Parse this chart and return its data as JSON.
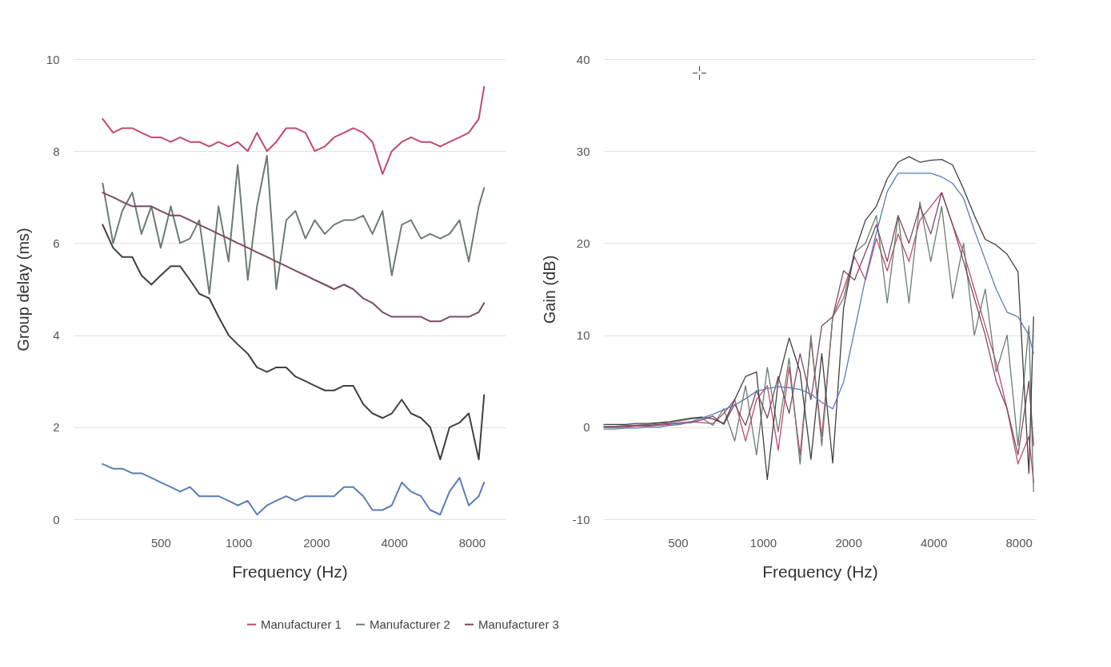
{
  "chart_data": [
    {
      "type": "line",
      "xlabel": "Frequency (Hz)",
      "ylabel": "Group delay (ms)",
      "log": "x",
      "grid": "y",
      "legend": "bottom",
      "xlim": [
        230,
        10800
      ],
      "ylim": [
        0,
        10
      ],
      "xticks": [
        500,
        1000,
        2000,
        4000,
        8000
      ],
      "yticks": [
        0,
        2,
        4,
        6,
        8,
        10
      ],
      "x": [
        298,
        327,
        355,
        388,
        421,
        460,
        500,
        547,
        594,
        649,
        705,
        771,
        837,
        915,
        993,
        1086,
        1179,
        1289,
        1400,
        1530,
        1662,
        1816,
        1973,
        2157,
        2343,
        2560,
        2780,
        3040,
        3300,
        3610,
        3920,
        4285,
        4650,
        5087,
        5520,
        6037,
        6557,
        7170,
        7785,
        8510,
        8927
      ],
      "series": [
        {
          "name": "Manufacturer 1",
          "color": "#c2496b",
          "values": [
            8.7,
            8.4,
            8.5,
            8.5,
            8.4,
            8.3,
            8.3,
            8.2,
            8.3,
            8.2,
            8.2,
            8.1,
            8.2,
            8.1,
            8.2,
            8.0,
            8.4,
            8.0,
            8.2,
            8.5,
            8.5,
            8.4,
            8.0,
            8.1,
            8.3,
            8.4,
            8.5,
            8.4,
            8.2,
            7.5,
            8.0,
            8.2,
            8.3,
            8.2,
            8.2,
            8.1,
            8.2,
            8.3,
            8.4,
            8.7,
            9.4
          ]
        },
        {
          "name": "Manufacturer 2",
          "color": "#6b7d70",
          "values": [
            7.3,
            6.0,
            6.7,
            7.1,
            6.2,
            6.8,
            5.9,
            6.8,
            6.0,
            6.1,
            6.5,
            4.9,
            6.8,
            5.6,
            7.7,
            5.2,
            6.8,
            7.9,
            5.0,
            6.5,
            6.7,
            6.1,
            6.5,
            6.2,
            6.4,
            6.5,
            6.5,
            6.6,
            6.2,
            6.7,
            5.3,
            6.4,
            6.5,
            6.1,
            6.2,
            6.1,
            6.2,
            6.5,
            5.6,
            6.8,
            7.2
          ]
        },
        {
          "name": "Manufacturer 3",
          "color": "#7b4a66",
          "values": [
            7.1,
            7.0,
            6.9,
            6.8,
            6.8,
            6.8,
            6.7,
            6.6,
            6.6,
            6.5,
            6.4,
            6.3,
            6.2,
            6.1,
            6.0,
            5.9,
            5.8,
            5.7,
            5.6,
            5.5,
            5.4,
            5.3,
            5.2,
            5.1,
            5.0,
            5.1,
            5.0,
            4.8,
            4.7,
            4.5,
            4.4,
            4.4,
            4.4,
            4.4,
            4.3,
            4.3,
            4.4,
            4.4,
            4.4,
            4.5,
            4.7
          ]
        },
        {
          "color": "#404040",
          "values": [
            6.4,
            5.9,
            5.7,
            5.7,
            5.3,
            5.1,
            5.3,
            5.5,
            5.5,
            5.2,
            4.9,
            4.8,
            4.4,
            4.0,
            3.8,
            3.6,
            3.3,
            3.2,
            3.3,
            3.3,
            3.1,
            3.0,
            2.9,
            2.8,
            2.8,
            2.9,
            2.9,
            2.5,
            2.3,
            2.2,
            2.3,
            2.6,
            2.3,
            2.2,
            2.0,
            1.3,
            2.0,
            2.1,
            2.3,
            1.3,
            2.7
          ]
        },
        {
          "color": "#5b7cb8",
          "values": [
            1.2,
            1.1,
            1.1,
            1.0,
            1.0,
            0.9,
            0.8,
            0.7,
            0.6,
            0.7,
            0.5,
            0.5,
            0.5,
            0.4,
            0.3,
            0.4,
            0.1,
            0.3,
            0.4,
            0.5,
            0.4,
            0.5,
            0.5,
            0.5,
            0.5,
            0.7,
            0.7,
            0.5,
            0.2,
            0.2,
            0.3,
            0.8,
            0.6,
            0.5,
            0.2,
            0.1,
            0.6,
            0.9,
            0.3,
            0.5,
            0.8
          ]
        }
      ]
    },
    {
      "type": "line",
      "xlabel": "Frequency (Hz)",
      "ylabel": "Gain (dB)",
      "log": "x",
      "grid": "y",
      "legend": "bottom",
      "xlim": [
        274,
        9190
      ],
      "ylim": [
        -10,
        40
      ],
      "xticks": [
        500,
        1000,
        2000,
        4000,
        8000
      ],
      "yticks": [
        -10,
        0,
        10,
        20,
        30,
        40
      ],
      "x": [
        274,
        300,
        327,
        357,
        391,
        427,
        467,
        510,
        557,
        608,
        665,
        726,
        794,
        867,
        948,
        1035,
        1131,
        1236,
        1351,
        1476,
        1612,
        1762,
        1925,
        2104,
        2300,
        2512,
        2745,
        2998,
        3276,
        3580,
        3912,
        4275,
        4671,
        5105,
        5575,
        6093,
        6657,
        7275,
        7950,
        8687,
        9025
      ],
      "series": [
        {
          "name": "Manufacturer 1",
          "color": "#c2496b",
          "values": [
            0,
            0,
            0,
            0.1,
            0.1,
            0.2,
            0.3,
            0.5,
            0.6,
            0.5,
            0.4,
            1.5,
            3.0,
            -1.5,
            3.0,
            4.5,
            -2.5,
            6.5,
            -3.0,
            9.5,
            -1.0,
            12.0,
            15.0,
            18.5,
            16.0,
            20.5,
            17.0,
            21.0,
            18.0,
            22.5,
            24.0,
            25.5,
            22.0,
            19.0,
            15.0,
            11.0,
            7.0,
            2.0,
            -4.0,
            -1.0,
            -6.0
          ]
        },
        {
          "name": "Manufacturer 2",
          "color": "#6b7d70",
          "values": [
            0.1,
            0.1,
            0.2,
            0.2,
            0.3,
            0.4,
            0.5,
            0.7,
            0.9,
            1.0,
            0.2,
            2.0,
            -1.5,
            4.5,
            -3.0,
            6.5,
            -0.5,
            7.5,
            -4.0,
            10.0,
            -2.0,
            12.0,
            14.0,
            19.0,
            20.0,
            23.0,
            13.5,
            23.0,
            13.5,
            24.5,
            18.0,
            24.0,
            14.0,
            20.0,
            10.0,
            15.0,
            6.0,
            10.0,
            -2.0,
            11.0,
            -7.0
          ]
        },
        {
          "name": "Manufacturer 3",
          "color": "#7b4a66",
          "values": [
            0,
            0,
            0.1,
            0.2,
            0.2,
            0.3,
            0.4,
            0.4,
            0.5,
            0.8,
            1.2,
            0.3,
            2.5,
            0.2,
            4.0,
            1.0,
            5.5,
            1.5,
            8.0,
            3.0,
            11.0,
            12.0,
            17.0,
            16.0,
            19.0,
            22.0,
            18.0,
            23.0,
            20.0,
            24.0,
            21.0,
            25.5,
            22.0,
            18.0,
            14.0,
            10.0,
            5.0,
            2.0,
            -3.0,
            5.0,
            -2.0
          ]
        },
        {
          "color": "#404040",
          "values": [
            0.3,
            0.3,
            0.3,
            0.4,
            0.4,
            0.5,
            0.6,
            0.8,
            1.0,
            1.1,
            0.9,
            0.4,
            3.0,
            5.5,
            6.0,
            -5.7,
            5.0,
            9.7,
            6.0,
            -3.5,
            8.0,
            -3.9,
            13.0,
            19.0,
            22.5,
            24.0,
            27.0,
            28.8,
            29.4,
            28.8,
            29.0,
            29.1,
            28.5,
            25.9,
            23.0,
            20.4,
            19.8,
            18.8,
            16.9,
            -5.0,
            12.0
          ]
        },
        {
          "color": "#5b7cb8",
          "values": [
            -0.2,
            -0.2,
            -0.1,
            -0.1,
            0,
            0,
            0.2,
            0.3,
            0.6,
            1.0,
            1.4,
            1.9,
            2.4,
            3.1,
            3.9,
            4.2,
            4.4,
            4.3,
            4.1,
            3.6,
            2.7,
            2.0,
            4.9,
            10.5,
            16.2,
            21.1,
            25.6,
            27.6,
            27.6,
            27.6,
            27.6,
            27.2,
            26.5,
            24.9,
            21.4,
            18.2,
            15.0,
            12.5,
            12.0,
            10.0,
            8.0
          ]
        }
      ]
    }
  ]
}
